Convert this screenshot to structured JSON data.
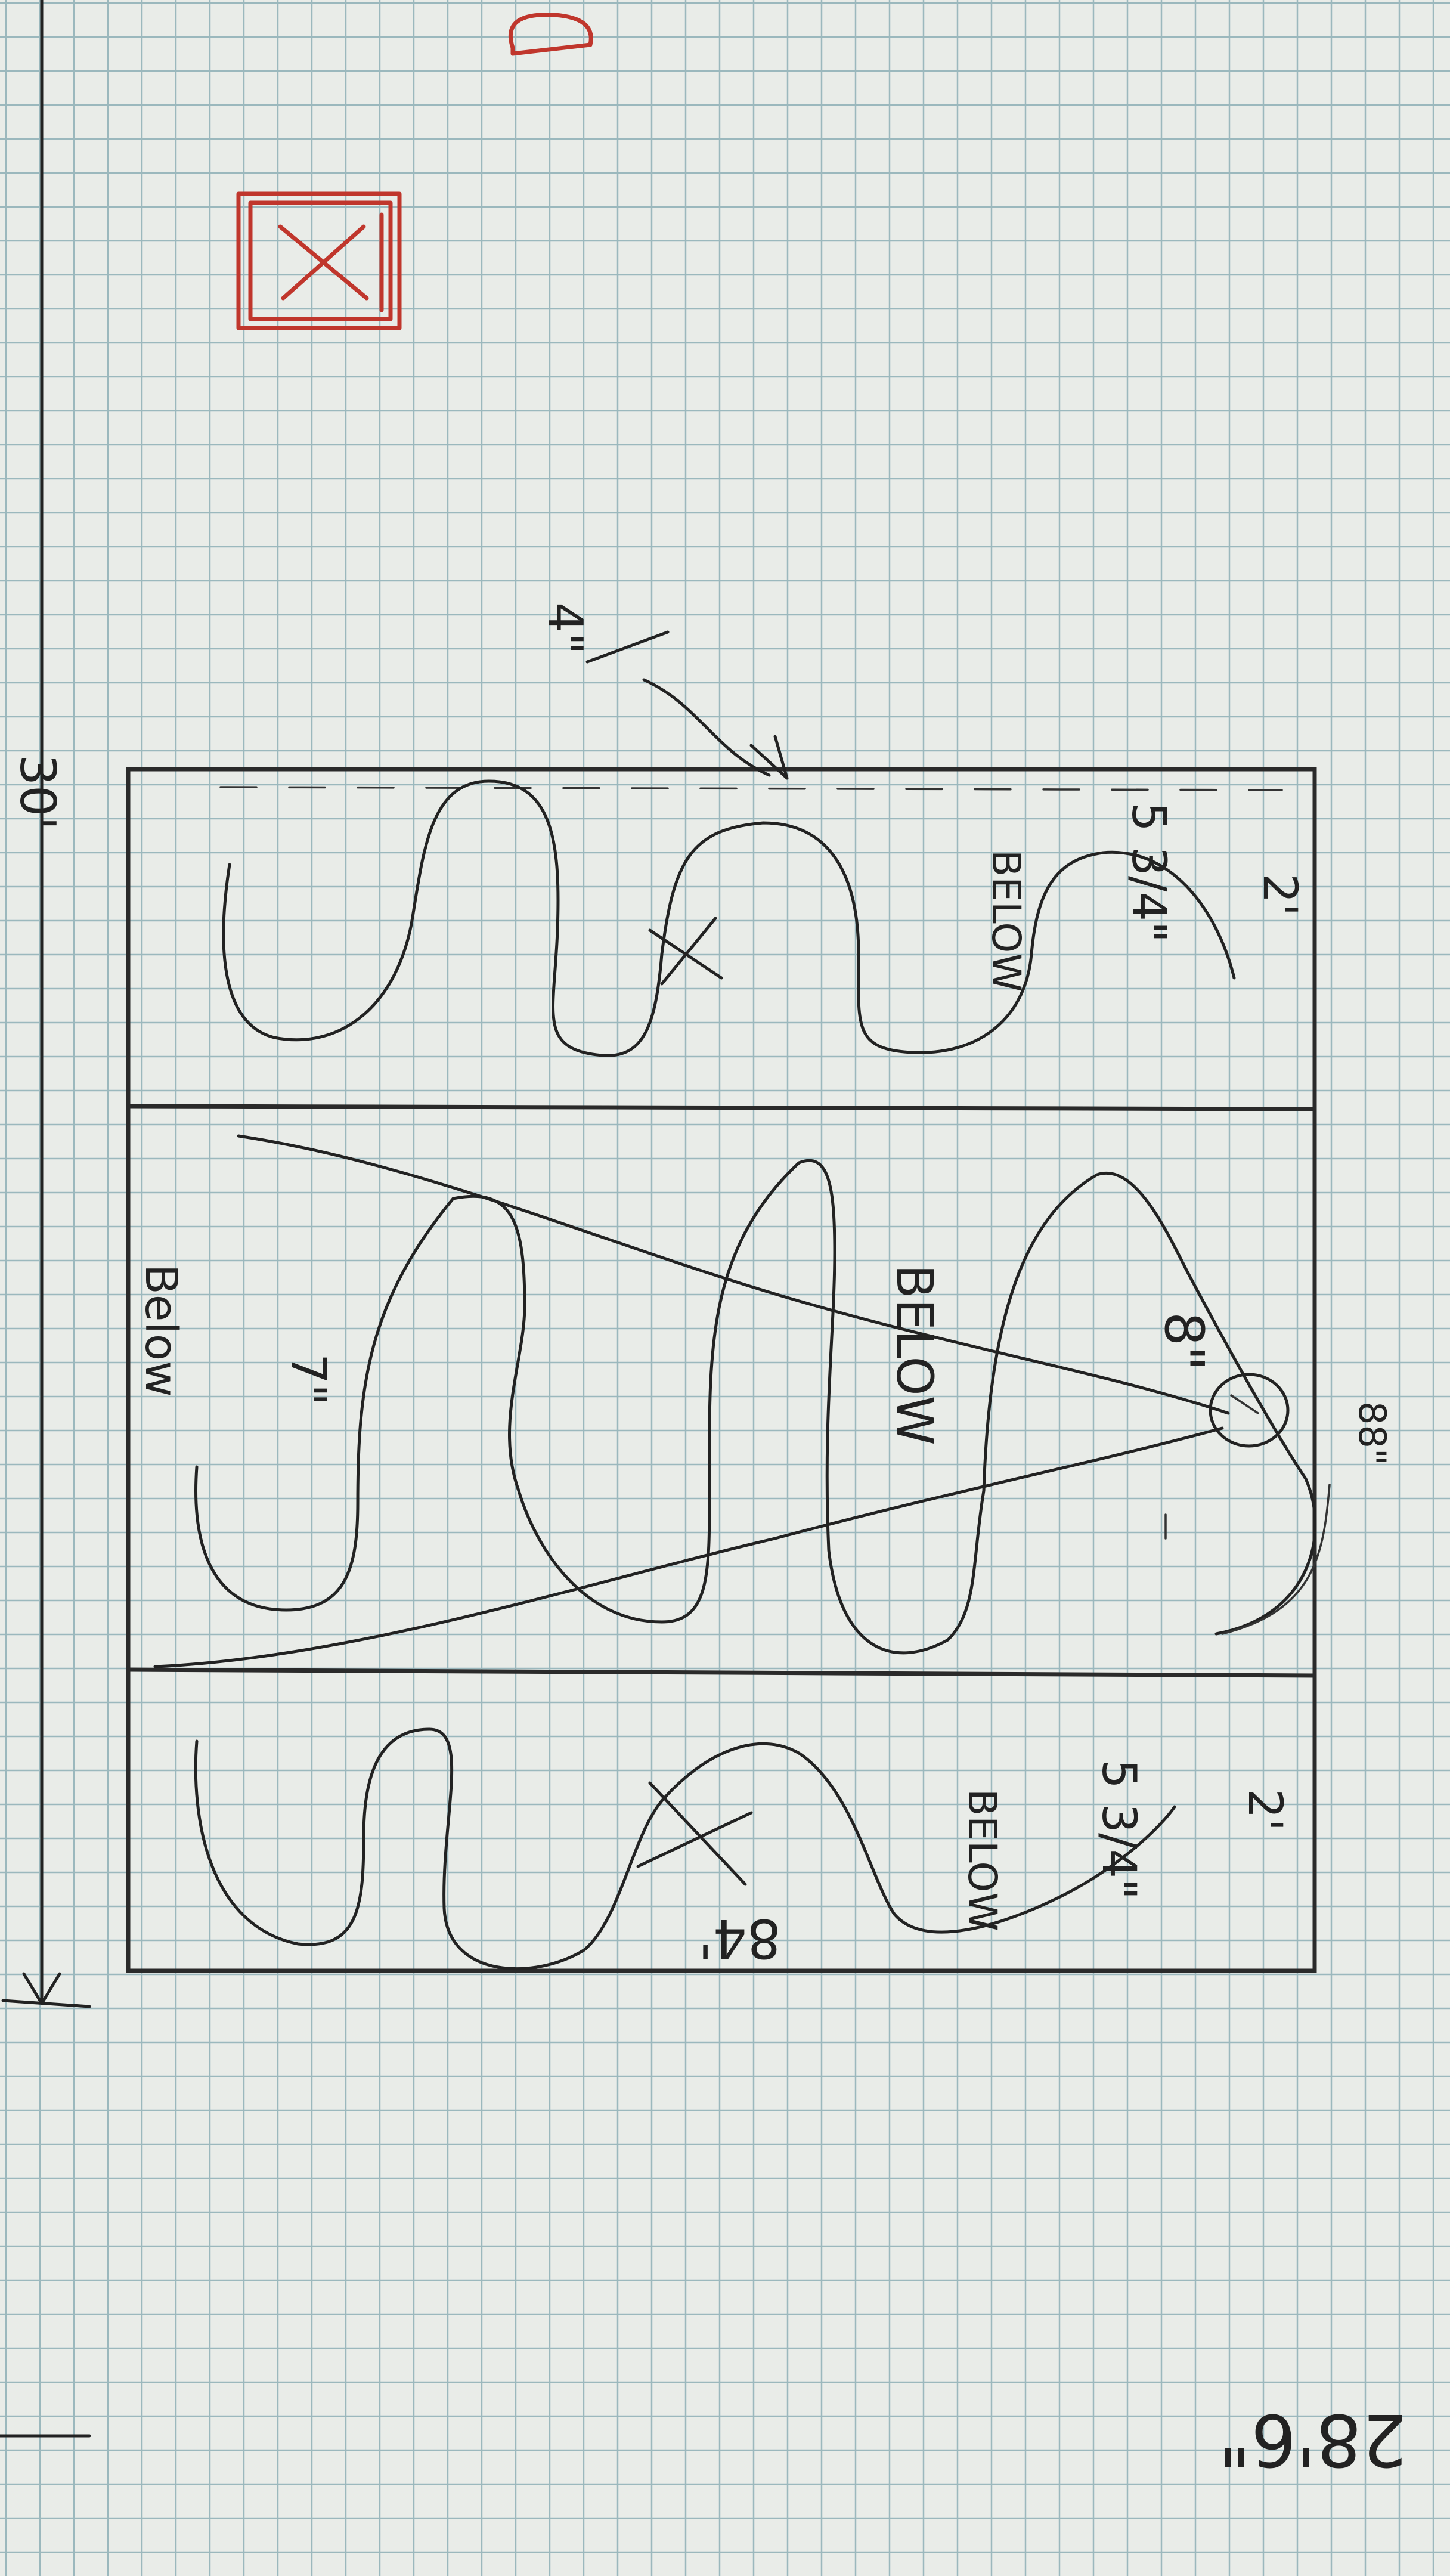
{
  "sheet": {
    "type": "hand-drawn floor plan sketch on graph paper",
    "grid": true
  },
  "dimensions": {
    "overall_length": "30'",
    "width": "28'6\"",
    "inner_span": "84'",
    "top_right_mark": "88\"",
    "pipe_note": "4\""
  },
  "zones": [
    {
      "length": "2'",
      "depth": "5 3/4\"",
      "note": "BELOW"
    },
    {
      "depth": "8\"",
      "note": "BELOW",
      "secondary_depth": "7\"",
      "secondary_note": "Below"
    },
    {
      "length": "2'",
      "depth": "5 3/4\"",
      "note": "BELOW"
    }
  ],
  "colors": {
    "paper": "#e9ece8",
    "grid": "#9bb8bd",
    "ink": "#222222",
    "red_ink": "#c0362c"
  }
}
